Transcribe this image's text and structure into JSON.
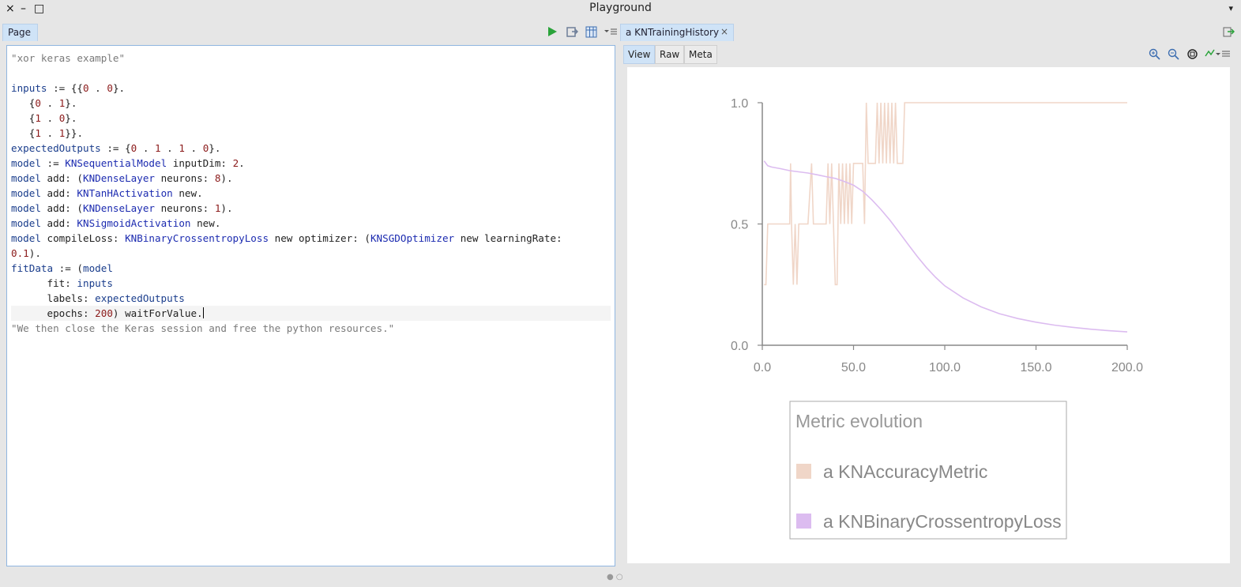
{
  "window": {
    "title": "Playground",
    "close_glyph": "×",
    "minimize_glyph": "–",
    "maximize_glyph": "□",
    "menu_glyph": "▾"
  },
  "left_tab": {
    "label": "Page"
  },
  "code_lines": [
    {
      "segments": [
        {
          "t": "\"xor keras example\"",
          "c": "c-com"
        }
      ]
    },
    {
      "segments": []
    },
    {
      "segments": [
        {
          "t": "inputs",
          "c": "c-var"
        },
        {
          "t": " := {{"
        },
        {
          "t": "0",
          "c": "c-num"
        },
        {
          "t": " . "
        },
        {
          "t": "0",
          "c": "c-num"
        },
        {
          "t": "}."
        }
      ]
    },
    {
      "segments": [
        {
          "t": "   {"
        },
        {
          "t": "0",
          "c": "c-num"
        },
        {
          "t": " . "
        },
        {
          "t": "1",
          "c": "c-num"
        },
        {
          "t": "}."
        }
      ]
    },
    {
      "segments": [
        {
          "t": "   {"
        },
        {
          "t": "1",
          "c": "c-num"
        },
        {
          "t": " . "
        },
        {
          "t": "0",
          "c": "c-num"
        },
        {
          "t": "}."
        }
      ]
    },
    {
      "segments": [
        {
          "t": "   {"
        },
        {
          "t": "1",
          "c": "c-num"
        },
        {
          "t": " . "
        },
        {
          "t": "1",
          "c": "c-num"
        },
        {
          "t": "}}."
        }
      ]
    },
    {
      "segments": [
        {
          "t": "expectedOutputs",
          "c": "c-var"
        },
        {
          "t": " := {"
        },
        {
          "t": "0",
          "c": "c-num"
        },
        {
          "t": " . "
        },
        {
          "t": "1",
          "c": "c-num"
        },
        {
          "t": " . "
        },
        {
          "t": "1",
          "c": "c-num"
        },
        {
          "t": " . "
        },
        {
          "t": "0",
          "c": "c-num"
        },
        {
          "t": "}."
        }
      ]
    },
    {
      "segments": [
        {
          "t": "model",
          "c": "c-var"
        },
        {
          "t": " := "
        },
        {
          "t": "KNSequentialModel",
          "c": "c-cls"
        },
        {
          "t": " inputDim: "
        },
        {
          "t": "2",
          "c": "c-num"
        },
        {
          "t": "."
        }
      ]
    },
    {
      "segments": [
        {
          "t": "model",
          "c": "c-var"
        },
        {
          "t": " add: ("
        },
        {
          "t": "KNDenseLayer",
          "c": "c-cls"
        },
        {
          "t": " neurons: "
        },
        {
          "t": "8",
          "c": "c-num"
        },
        {
          "t": ")."
        }
      ]
    },
    {
      "segments": [
        {
          "t": "model",
          "c": "c-var"
        },
        {
          "t": " add: "
        },
        {
          "t": "KNTanHActivation",
          "c": "c-cls"
        },
        {
          "t": " new."
        }
      ]
    },
    {
      "segments": [
        {
          "t": "model",
          "c": "c-var"
        },
        {
          "t": " add: ("
        },
        {
          "t": "KNDenseLayer",
          "c": "c-cls"
        },
        {
          "t": " neurons: "
        },
        {
          "t": "1",
          "c": "c-num"
        },
        {
          "t": ")."
        }
      ]
    },
    {
      "segments": [
        {
          "t": "model",
          "c": "c-var"
        },
        {
          "t": " add: "
        },
        {
          "t": "KNSigmoidActivation",
          "c": "c-cls"
        },
        {
          "t": " new."
        }
      ]
    },
    {
      "segments": [
        {
          "t": "model",
          "c": "c-var"
        },
        {
          "t": " compileLoss: "
        },
        {
          "t": "KNBinaryCrossentropyLoss",
          "c": "c-cls"
        },
        {
          "t": " new optimizer: ("
        },
        {
          "t": "KNSGDOptimizer",
          "c": "c-cls"
        },
        {
          "t": " new learningRate:"
        }
      ]
    },
    {
      "segments": [
        {
          "t": "0.1",
          "c": "c-num"
        },
        {
          "t": ")."
        }
      ]
    },
    {
      "segments": [
        {
          "t": "fitData",
          "c": "c-var"
        },
        {
          "t": " := ("
        },
        {
          "t": "model",
          "c": "c-var"
        }
      ]
    },
    {
      "segments": [
        {
          "t": "      fit: "
        },
        {
          "t": "inputs",
          "c": "c-var"
        }
      ]
    },
    {
      "segments": [
        {
          "t": "      labels: "
        },
        {
          "t": "expectedOutputs",
          "c": "c-var"
        }
      ]
    },
    {
      "segments": [
        {
          "t": "      epochs: "
        },
        {
          "t": "200",
          "c": "c-num"
        },
        {
          "t": ") waitForValue."
        }
      ],
      "cursor": true
    },
    {
      "segments": [
        {
          "t": "\"We then close the Keras session and free the python resources.\"",
          "c": "c-com"
        }
      ]
    }
  ],
  "right_tab": {
    "label": "a KNTrainingHistory",
    "close_glyph": "×"
  },
  "view_tabs": [
    "View",
    "Raw",
    "Meta"
  ],
  "status_dots": "●  ○",
  "chart_data": {
    "type": "line",
    "xlim": [
      0,
      200
    ],
    "ylim": [
      0,
      1
    ],
    "x_ticks": [
      {
        "v": 0,
        "label": "0.0"
      },
      {
        "v": 50,
        "label": "50.0"
      },
      {
        "v": 100,
        "label": "100.0"
      },
      {
        "v": 150,
        "label": "150.0"
      },
      {
        "v": 200,
        "label": "200.0"
      }
    ],
    "y_ticks": [
      {
        "v": 0,
        "label": "0.0"
      },
      {
        "v": 0.5,
        "label": "0.5"
      },
      {
        "v": 1,
        "label": "1.0"
      }
    ],
    "legend_title": "Metric evolution",
    "series": [
      {
        "name": "a KNAccuracyMetric",
        "color": "#f0d6c8",
        "points": [
          [
            1,
            0.25
          ],
          [
            2,
            0.25
          ],
          [
            3,
            0.5
          ],
          [
            5,
            0.5
          ],
          [
            7,
            0.5
          ],
          [
            9,
            0.5
          ],
          [
            11,
            0.5
          ],
          [
            13,
            0.5
          ],
          [
            15,
            0.5
          ],
          [
            15.5,
            0.75
          ],
          [
            16,
            0.5
          ],
          [
            17,
            0.25
          ],
          [
            18,
            0.5
          ],
          [
            19,
            0.25
          ],
          [
            20,
            0.5
          ],
          [
            21,
            0.5
          ],
          [
            23,
            0.5
          ],
          [
            25,
            0.5
          ],
          [
            27,
            0.75
          ],
          [
            28,
            0.5
          ],
          [
            29,
            0.5
          ],
          [
            31,
            0.5
          ],
          [
            33,
            0.5
          ],
          [
            35,
            0.5
          ],
          [
            36,
            0.75
          ],
          [
            37,
            0.5
          ],
          [
            38,
            0.75
          ],
          [
            39,
            0.5
          ],
          [
            40,
            0.25
          ],
          [
            41,
            0.25
          ],
          [
            42,
            0.75
          ],
          [
            43,
            0.5
          ],
          [
            44,
            0.75
          ],
          [
            45,
            0.5
          ],
          [
            46,
            0.75
          ],
          [
            47,
            0.5
          ],
          [
            48,
            0.75
          ],
          [
            49,
            0.5
          ],
          [
            50,
            0.75
          ],
          [
            51,
            0.75
          ],
          [
            53,
            0.75
          ],
          [
            55,
            0.75
          ],
          [
            56,
            0.5
          ],
          [
            57,
            1
          ],
          [
            58,
            0.75
          ],
          [
            60,
            0.75
          ],
          [
            62,
            0.75
          ],
          [
            63,
            1
          ],
          [
            64,
            0.75
          ],
          [
            65,
            1
          ],
          [
            66,
            0.75
          ],
          [
            67,
            1
          ],
          [
            68,
            0.75
          ],
          [
            69,
            1
          ],
          [
            70,
            0.75
          ],
          [
            71,
            1
          ],
          [
            72,
            0.75
          ],
          [
            73,
            1
          ],
          [
            74,
            0.75
          ],
          [
            75,
            0.75
          ],
          [
            77,
            0.75
          ],
          [
            78,
            1
          ],
          [
            80,
            1
          ],
          [
            100,
            1
          ],
          [
            130,
            1
          ],
          [
            160,
            1
          ],
          [
            200,
            1
          ]
        ]
      },
      {
        "name": "a KNBinaryCrossentropyLoss",
        "color": "#dcbcf0",
        "points": [
          [
            1,
            0.76
          ],
          [
            3,
            0.74
          ],
          [
            5,
            0.735
          ],
          [
            10,
            0.728
          ],
          [
            15,
            0.72
          ],
          [
            20,
            0.715
          ],
          [
            25,
            0.71
          ],
          [
            30,
            0.703
          ],
          [
            35,
            0.695
          ],
          [
            40,
            0.688
          ],
          [
            45,
            0.675
          ],
          [
            50,
            0.66
          ],
          [
            55,
            0.635
          ],
          [
            60,
            0.6
          ],
          [
            65,
            0.56
          ],
          [
            70,
            0.515
          ],
          [
            75,
            0.465
          ],
          [
            80,
            0.415
          ],
          [
            85,
            0.365
          ],
          [
            90,
            0.32
          ],
          [
            95,
            0.28
          ],
          [
            100,
            0.245
          ],
          [
            110,
            0.195
          ],
          [
            120,
            0.158
          ],
          [
            130,
            0.13
          ],
          [
            140,
            0.11
          ],
          [
            150,
            0.095
          ],
          [
            160,
            0.083
          ],
          [
            170,
            0.074
          ],
          [
            180,
            0.066
          ],
          [
            190,
            0.06
          ],
          [
            200,
            0.055
          ]
        ]
      }
    ]
  }
}
